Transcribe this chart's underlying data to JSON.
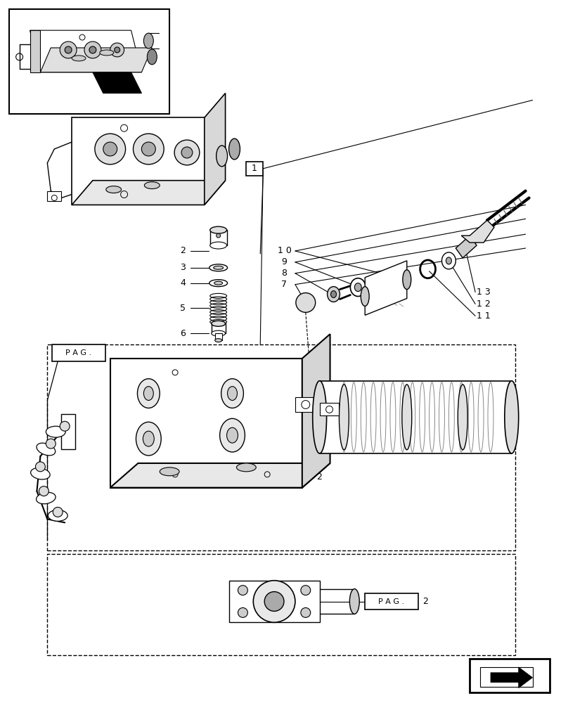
{
  "bg_color": "#ffffff",
  "line_color": "#000000",
  "fig_width": 8.08,
  "fig_height": 10.0,
  "dpi": 100
}
